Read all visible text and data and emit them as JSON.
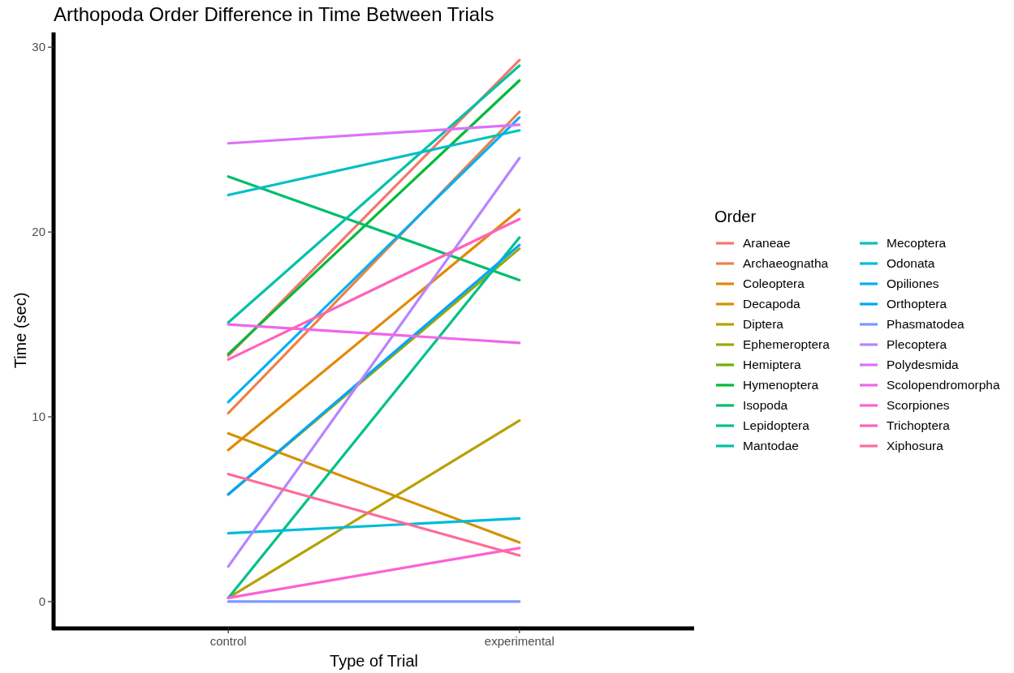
{
  "chart_data": {
    "type": "line",
    "title": "Arthopoda Order Difference in Time Between Trials",
    "xlabel": "Type of Trial",
    "ylabel": "Time (sec)",
    "legend_title": "Order",
    "legend": "right",
    "grid": false,
    "marker": "none",
    "line_style": "solid",
    "categories": [
      "control",
      "experimental"
    ],
    "ylim": [
      -1.45,
      30.8
    ],
    "yticks": [
      0,
      10,
      20,
      30
    ],
    "series": [
      {
        "name": "Araneae",
        "color": "#f8766d",
        "values": [
          13.3,
          29.3
        ]
      },
      {
        "name": "Archaeognatha",
        "color": "#ee8044",
        "values": [
          10.2,
          26.5
        ]
      },
      {
        "name": "Coleoptera",
        "color": "#e38900",
        "values": [
          8.2,
          21.2
        ]
      },
      {
        "name": "Decapoda",
        "color": "#d49200",
        "values": [
          9.1,
          3.2
        ]
      },
      {
        "name": "Diptera",
        "color": "#b8a000",
        "values": [
          0.2,
          9.8
        ]
      },
      {
        "name": "Ephemeroptera",
        "color": "#9aa800",
        "values": [
          5.8,
          19.1
        ]
      },
      {
        "name": "Hemiptera",
        "color": "#72b000",
        "values": [
          null,
          null
        ]
      },
      {
        "name": "Hymenoptera",
        "color": "#00ba38",
        "values": [
          13.4,
          28.2
        ]
      },
      {
        "name": "Isopoda",
        "color": "#00be6c",
        "values": [
          23.0,
          17.4
        ]
      },
      {
        "name": "Lepidoptera",
        "color": "#00c08b",
        "values": [
          0.2,
          19.7
        ]
      },
      {
        "name": "Mantodae",
        "color": "#00c1a7",
        "values": [
          15.1,
          29.0
        ]
      },
      {
        "name": "Mecoptera",
        "color": "#00bfc4",
        "values": [
          22.0,
          25.5
        ]
      },
      {
        "name": "Odonata",
        "color": "#00bbda",
        "values": [
          3.7,
          4.5
        ]
      },
      {
        "name": "Opiliones",
        "color": "#00b0f6",
        "values": [
          10.8,
          26.2
        ]
      },
      {
        "name": "Orthoptera",
        "color": "#00a5ff",
        "values": [
          5.8,
          19.3
        ]
      },
      {
        "name": "Phasmatodea",
        "color": "#7f96ff",
        "values": [
          0,
          0
        ]
      },
      {
        "name": "Plecoptera",
        "color": "#b983ff",
        "values": [
          1.9,
          24.0
        ]
      },
      {
        "name": "Polydesmida",
        "color": "#dc71fa",
        "values": [
          24.8,
          25.8
        ]
      },
      {
        "name": "Scolopendromorpha",
        "color": "#f066ea",
        "values": [
          15.0,
          14.0
        ]
      },
      {
        "name": "Scorpiones",
        "color": "#fb61d7",
        "values": [
          0.2,
          2.9
        ]
      },
      {
        "name": "Trichoptera",
        "color": "#ff62bc",
        "values": [
          13.1,
          20.7
        ]
      },
      {
        "name": "Xiphosura",
        "color": "#ff6a98",
        "values": [
          6.9,
          2.5
        ]
      }
    ]
  }
}
